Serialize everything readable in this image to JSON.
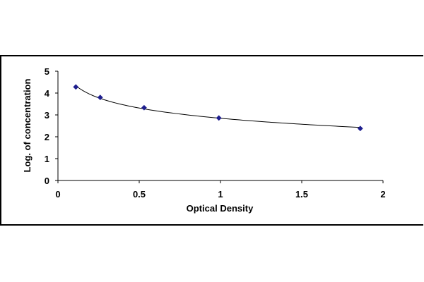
{
  "chart_data": {
    "type": "scatter",
    "title": "",
    "xlabel": "Optical Density",
    "ylabel": "Log. of concentration",
    "xlim": [
      0,
      2
    ],
    "ylim": [
      0,
      5
    ],
    "x_ticks": [
      "0",
      "0.5",
      "1",
      "1.5",
      "2"
    ],
    "y_ticks": [
      "0",
      "1",
      "2",
      "3",
      "4",
      "5"
    ],
    "grid": false,
    "trendline": "logarithmic",
    "points_x": [
      0.11,
      0.26,
      0.53,
      0.99,
      1.86
    ],
    "points_y": [
      4.28,
      3.8,
      3.33,
      2.86,
      2.38
    ],
    "colors": {
      "marker": "#1f1f8f",
      "line": "#000000"
    }
  }
}
